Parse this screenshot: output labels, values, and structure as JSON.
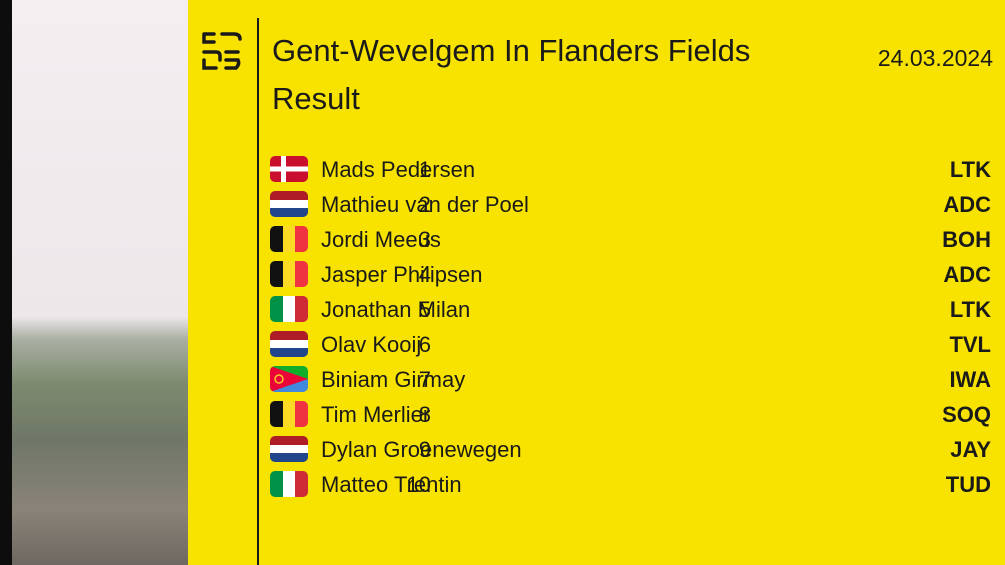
{
  "header": {
    "title": "Gent-Wevelgem In Flanders Fields",
    "subtitle": "Result",
    "date": "24.03.2024"
  },
  "table": {
    "rows": [
      [
        "1",
        "Mads Pedersen",
        "LTK"
      ],
      [
        "2",
        "Mathieu van der Poel",
        "ADC"
      ],
      [
        "3",
        "Jordi Meeus",
        "BOH"
      ],
      [
        "4",
        "Jasper Philipsen",
        "ADC"
      ],
      [
        "5",
        "Jonathan Milan",
        "LTK"
      ],
      [
        "6",
        "Olav Kooij",
        "TVL"
      ],
      [
        "7",
        "Biniam Girmay",
        "IWA"
      ],
      [
        "8",
        "Tim Merlier",
        "SOQ"
      ],
      [
        "9",
        "Dylan Groenewegen",
        "JAY"
      ],
      [
        "10",
        "Matteo Trentin",
        "TUD"
      ]
    ]
  }
}
